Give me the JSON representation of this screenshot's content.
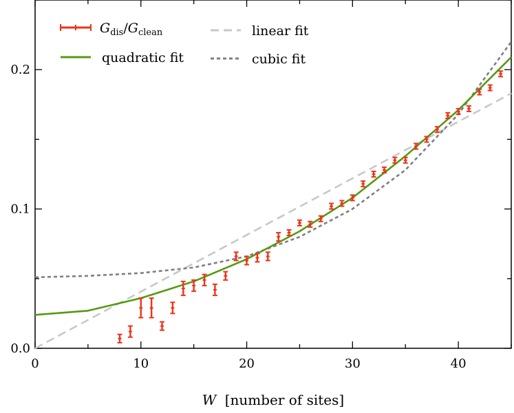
{
  "chart_data": {
    "type": "scatter",
    "xlabel_var": "W",
    "xlabel_rest": "[number of sites]",
    "xlim": [
      0,
      45
    ],
    "ylim": [
      0,
      0.25
    ],
    "x_ticks": [
      0,
      10,
      20,
      30,
      40
    ],
    "y_ticks": [
      0.0,
      0.1,
      0.2
    ],
    "y_tick_labels": [
      "0.0",
      "0.1",
      "0.2"
    ],
    "grid": false,
    "legend_position": "top",
    "colors": {
      "data": "#ee3318",
      "linear": "#c8c8c8",
      "quadratic": "#559911",
      "cubic": "#7f7f7f"
    },
    "data_series": {
      "legend_label": {
        "G1": "G",
        "sub1": "dis",
        "slash": "/",
        "G2": "G",
        "sub2": "clean"
      },
      "points": [
        {
          "x": 8,
          "y": 0.007,
          "err": 0.003
        },
        {
          "x": 9,
          "y": 0.012,
          "err": 0.004
        },
        {
          "x": 10,
          "y": 0.029,
          "err": 0.007
        },
        {
          "x": 11,
          "y": 0.029,
          "err": 0.007
        },
        {
          "x": 12,
          "y": 0.016,
          "err": 0.003
        },
        {
          "x": 13,
          "y": 0.029,
          "err": 0.004
        },
        {
          "x": 14,
          "y": 0.043,
          "err": 0.005
        },
        {
          "x": 15,
          "y": 0.045,
          "err": 0.004
        },
        {
          "x": 16,
          "y": 0.049,
          "err": 0.004
        },
        {
          "x": 17,
          "y": 0.042,
          "err": 0.004
        },
        {
          "x": 18,
          "y": 0.052,
          "err": 0.003
        },
        {
          "x": 19,
          "y": 0.066,
          "err": 0.003
        },
        {
          "x": 20,
          "y": 0.063,
          "err": 0.003
        },
        {
          "x": 21,
          "y": 0.065,
          "err": 0.003
        },
        {
          "x": 22,
          "y": 0.066,
          "err": 0.003
        },
        {
          "x": 23,
          "y": 0.08,
          "err": 0.003
        },
        {
          "x": 24,
          "y": 0.083,
          "err": 0.002
        },
        {
          "x": 25,
          "y": 0.09,
          "err": 0.002
        },
        {
          "x": 26,
          "y": 0.089,
          "err": 0.002
        },
        {
          "x": 27,
          "y": 0.093,
          "err": 0.002
        },
        {
          "x": 28,
          "y": 0.102,
          "err": 0.002
        },
        {
          "x": 29,
          "y": 0.104,
          "err": 0.002
        },
        {
          "x": 30,
          "y": 0.108,
          "err": 0.002
        },
        {
          "x": 31,
          "y": 0.118,
          "err": 0.002
        },
        {
          "x": 32,
          "y": 0.125,
          "err": 0.002
        },
        {
          "x": 33,
          "y": 0.128,
          "err": 0.002
        },
        {
          "x": 34,
          "y": 0.135,
          "err": 0.002
        },
        {
          "x": 35,
          "y": 0.135,
          "err": 0.002
        },
        {
          "x": 36,
          "y": 0.145,
          "err": 0.002
        },
        {
          "x": 37,
          "y": 0.15,
          "err": 0.002
        },
        {
          "x": 38,
          "y": 0.157,
          "err": 0.002
        },
        {
          "x": 39,
          "y": 0.167,
          "err": 0.002
        },
        {
          "x": 40,
          "y": 0.17,
          "err": 0.002
        },
        {
          "x": 41,
          "y": 0.172,
          "err": 0.002
        },
        {
          "x": 42,
          "y": 0.184,
          "err": 0.002
        },
        {
          "x": 43,
          "y": 0.187,
          "err": 0.002
        },
        {
          "x": 44,
          "y": 0.197,
          "err": 0.002
        }
      ]
    },
    "fits": [
      {
        "id": "linear",
        "name": "linear fit",
        "x": [
          0,
          45
        ],
        "y": [
          0.0,
          0.183
        ]
      },
      {
        "id": "quadratic",
        "name": "quadratic fit",
        "x": [
          0,
          5,
          10,
          15,
          20,
          25,
          30,
          35,
          40,
          45
        ],
        "y": [
          0.024,
          0.027,
          0.036,
          0.048,
          0.064,
          0.084,
          0.108,
          0.138,
          0.171,
          0.209
        ]
      },
      {
        "id": "cubic",
        "name": "cubic fit",
        "x": [
          0,
          5,
          10,
          15,
          20,
          25,
          30,
          35,
          40,
          45
        ],
        "y": [
          0.051,
          0.052,
          0.054,
          0.058,
          0.066,
          0.08,
          0.1,
          0.128,
          0.168,
          0.22
        ]
      }
    ]
  }
}
